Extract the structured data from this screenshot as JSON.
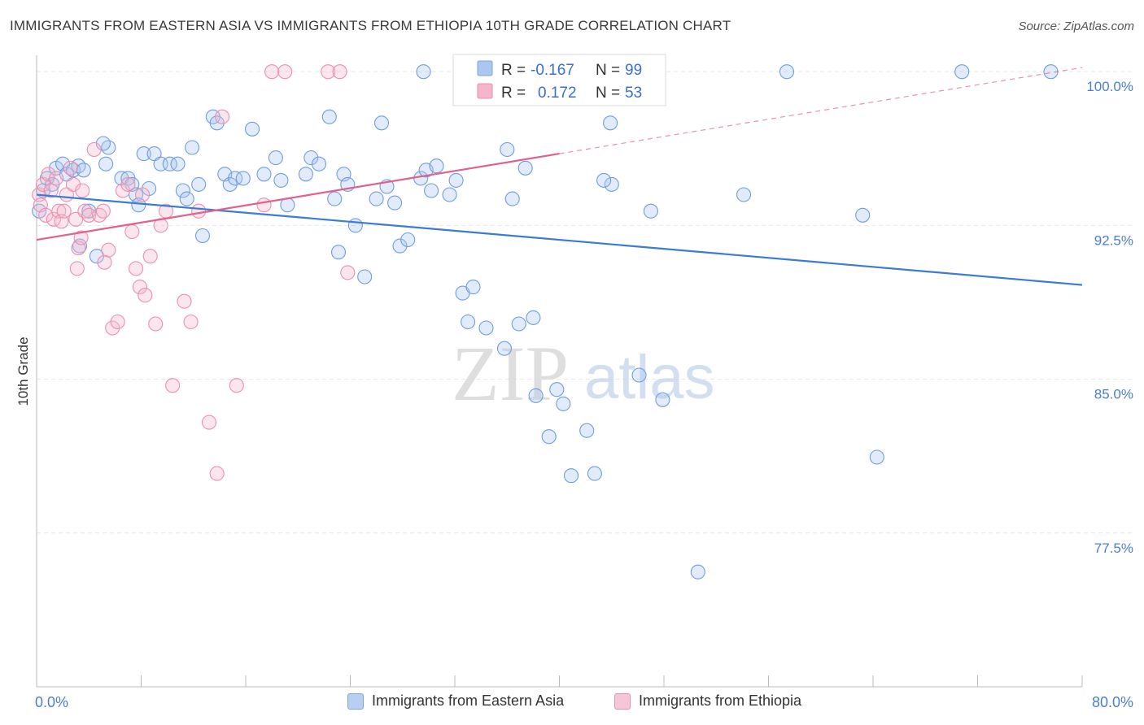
{
  "title": "IMMIGRANTS FROM EASTERN ASIA VS IMMIGRANTS FROM ETHIOPIA 10TH GRADE CORRELATION CHART",
  "source": "Source: ZipAtlas.com",
  "watermark": {
    "zip": "ZIP",
    "atlas": "atlas"
  },
  "colors": {
    "blue": "#3a7bd5",
    "blue_fill": "#a9c7ef",
    "pink": "#e0608e",
    "pink_fill": "#f4b6cb",
    "tick_text": "#4a7fd0",
    "grid": "#e6e6e6"
  },
  "legend": {
    "rows": [
      {
        "r_label": "R =",
        "r_value": "-0.167",
        "n_label": "N =",
        "n_value": "99"
      },
      {
        "r_label": "R =",
        "r_value": "0.172",
        "n_label": "N =",
        "n_value": "53"
      }
    ]
  },
  "bottom_legend": {
    "blue": "Immigrants from Eastern Asia",
    "pink": "Immigrants from Ethiopia"
  },
  "chart_data": {
    "type": "scatter",
    "ylabel": "10th Grade",
    "xlim": [
      0,
      80
    ],
    "ylim": [
      70.0,
      100.8
    ],
    "y_ticks": [
      {
        "v": 100.0,
        "label": "100.0%"
      },
      {
        "v": 92.5,
        "label": "92.5%"
      },
      {
        "v": 85.0,
        "label": "85.0%"
      },
      {
        "v": 77.5,
        "label": "77.5%"
      }
    ],
    "x_tick_labels": {
      "left": "0.0%",
      "right": "80.0%"
    },
    "series": [
      {
        "name": "Immigrants from Eastern Asia",
        "color": "blue",
        "R": -0.167,
        "N": 99,
        "trend": {
          "x": [
            0,
            80
          ],
          "y": [
            94.0,
            89.6
          ]
        },
        "points": [
          [
            0.2,
            93.2
          ],
          [
            0.5,
            94.2
          ],
          [
            0.8,
            94.8
          ],
          [
            1.2,
            94.5
          ],
          [
            1.5,
            95.3
          ],
          [
            2.0,
            95.5
          ],
          [
            2.3,
            95.0
          ],
          [
            2.8,
            95.2
          ],
          [
            3.2,
            95.4
          ],
          [
            3.6,
            95.2
          ],
          [
            3.3,
            91.5
          ],
          [
            4.0,
            93.2
          ],
          [
            4.6,
            91.0
          ],
          [
            5.3,
            95.5
          ],
          [
            5.5,
            96.3
          ],
          [
            5.1,
            96.5
          ],
          [
            6.5,
            94.8
          ],
          [
            7.0,
            94.8
          ],
          [
            7.3,
            94.5
          ],
          [
            7.6,
            94.0
          ],
          [
            7.8,
            93.5
          ],
          [
            8.2,
            96.0
          ],
          [
            8.6,
            94.3
          ],
          [
            9.0,
            96.0
          ],
          [
            9.5,
            95.5
          ],
          [
            10.2,
            95.5
          ],
          [
            10.8,
            95.5
          ],
          [
            11.2,
            94.2
          ],
          [
            11.5,
            93.8
          ],
          [
            11.9,
            96.3
          ],
          [
            12.4,
            94.5
          ],
          [
            12.7,
            92.0
          ],
          [
            13.5,
            97.8
          ],
          [
            13.8,
            97.5
          ],
          [
            14.4,
            95.0
          ],
          [
            14.8,
            94.5
          ],
          [
            15.2,
            94.8
          ],
          [
            15.8,
            94.8
          ],
          [
            16.5,
            97.2
          ],
          [
            17.4,
            95.0
          ],
          [
            18.3,
            95.8
          ],
          [
            18.7,
            94.7
          ],
          [
            19.2,
            93.5
          ],
          [
            20.6,
            95.0
          ],
          [
            21.0,
            95.8
          ],
          [
            21.6,
            95.5
          ],
          [
            22.4,
            97.8
          ],
          [
            22.8,
            93.8
          ],
          [
            23.1,
            91.2
          ],
          [
            23.5,
            95.0
          ],
          [
            23.8,
            94.5
          ],
          [
            24.4,
            92.5
          ],
          [
            25.1,
            90.0
          ],
          [
            26.0,
            93.8
          ],
          [
            26.4,
            97.5
          ],
          [
            26.8,
            94.4
          ],
          [
            27.4,
            93.6
          ],
          [
            27.8,
            91.5
          ],
          [
            28.4,
            91.8
          ],
          [
            29.4,
            94.8
          ],
          [
            29.8,
            95.2
          ],
          [
            30.2,
            94.2
          ],
          [
            30.6,
            95.4
          ],
          [
            31.6,
            94.0
          ],
          [
            32.1,
            94.7
          ],
          [
            32.6,
            89.2
          ],
          [
            33.4,
            89.5
          ],
          [
            33.0,
            87.8
          ],
          [
            34.4,
            87.5
          ],
          [
            35.8,
            86.5
          ],
          [
            36.0,
            96.2
          ],
          [
            36.4,
            93.8
          ],
          [
            36.9,
            87.7
          ],
          [
            37.4,
            95.3
          ],
          [
            38.0,
            88.0
          ],
          [
            38.2,
            84.2
          ],
          [
            39.2,
            82.2
          ],
          [
            39.8,
            84.5
          ],
          [
            40.3,
            83.8
          ],
          [
            40.9,
            80.3
          ],
          [
            42.1,
            82.5
          ],
          [
            42.7,
            80.4
          ],
          [
            43.9,
            97.5
          ],
          [
            44.0,
            94.5
          ],
          [
            43.4,
            94.7
          ],
          [
            45.3,
            100.0
          ],
          [
            46.1,
            85.2
          ],
          [
            47.0,
            93.2
          ],
          [
            47.9,
            84.0
          ],
          [
            50.6,
            75.6
          ],
          [
            54.1,
            94.0
          ],
          [
            57.4,
            100.0
          ],
          [
            63.2,
            93.0
          ],
          [
            64.3,
            81.2
          ],
          [
            70.8,
            100.0
          ],
          [
            77.6,
            100.0
          ],
          [
            40.8,
            100.0
          ],
          [
            38.7,
            100.0
          ],
          [
            29.6,
            100.0
          ]
        ]
      },
      {
        "name": "Immigrants from Ethiopia",
        "color": "pink",
        "R": 0.172,
        "N": 53,
        "trend": {
          "x": [
            0,
            40
          ],
          "y": [
            91.8,
            96.0
          ]
        },
        "trend_ext": {
          "x": [
            40,
            80
          ],
          "y": [
            96.0,
            100.2
          ]
        },
        "points": [
          [
            0.2,
            94.0
          ],
          [
            0.3,
            93.5
          ],
          [
            0.5,
            94.5
          ],
          [
            0.7,
            93.0
          ],
          [
            0.9,
            95.0
          ],
          [
            1.1,
            94.2
          ],
          [
            1.3,
            92.8
          ],
          [
            1.5,
            94.8
          ],
          [
            1.7,
            93.2
          ],
          [
            1.9,
            92.7
          ],
          [
            2.1,
            93.2
          ],
          [
            2.3,
            94.0
          ],
          [
            2.6,
            95.3
          ],
          [
            2.8,
            94.5
          ],
          [
            3.0,
            92.8
          ],
          [
            3.2,
            91.4
          ],
          [
            3.5,
            94.2
          ],
          [
            3.7,
            93.2
          ],
          [
            4.0,
            93.0
          ],
          [
            4.4,
            96.2
          ],
          [
            4.8,
            93.0
          ],
          [
            5.1,
            93.2
          ],
          [
            5.5,
            91.3
          ],
          [
            5.8,
            87.5
          ],
          [
            6.2,
            87.8
          ],
          [
            6.6,
            94.2
          ],
          [
            7.0,
            94.5
          ],
          [
            7.3,
            92.2
          ],
          [
            7.6,
            90.4
          ],
          [
            7.9,
            89.5
          ],
          [
            8.1,
            94.0
          ],
          [
            8.3,
            89.1
          ],
          [
            8.7,
            91.0
          ],
          [
            9.1,
            87.7
          ],
          [
            9.5,
            92.5
          ],
          [
            9.9,
            93.2
          ],
          [
            10.4,
            84.7
          ],
          [
            11.3,
            88.8
          ],
          [
            11.8,
            87.8
          ],
          [
            12.4,
            93.2
          ],
          [
            13.2,
            82.9
          ],
          [
            13.8,
            80.4
          ],
          [
            14.2,
            97.8
          ],
          [
            15.3,
            84.7
          ],
          [
            18.0,
            100.0
          ],
          [
            19.0,
            100.0
          ],
          [
            22.3,
            100.0
          ],
          [
            23.2,
            100.0
          ],
          [
            23.8,
            90.2
          ],
          [
            17.4,
            93.5
          ],
          [
            3.4,
            91.9
          ],
          [
            5.2,
            90.7
          ],
          [
            3.1,
            90.4
          ]
        ]
      }
    ]
  }
}
